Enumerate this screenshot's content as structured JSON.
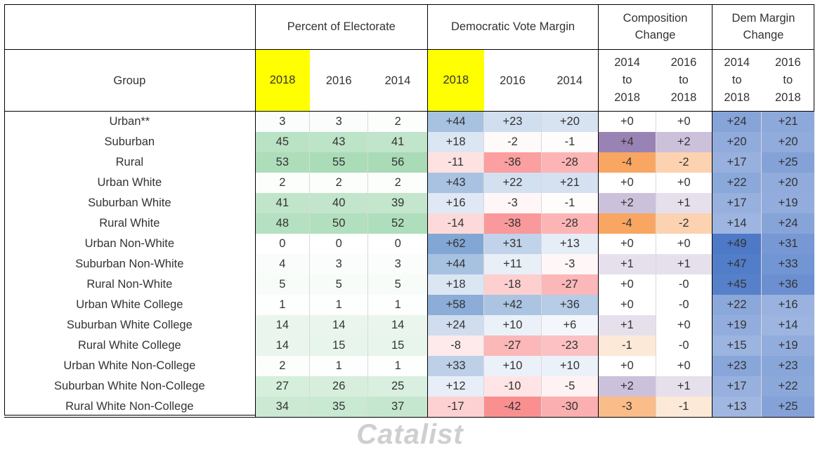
{
  "header": {
    "group_label": "Group",
    "percent_of_electorate": "Percent of Electorate",
    "dem_vote_margin": "Democratic Vote Margin",
    "composition_change": "Composition Change",
    "dem_margin_change": "Dem Margin Change",
    "years": [
      "2018",
      "2016",
      "2014"
    ],
    "change_2014": "2014 to 2018",
    "change_2016": "2016 to 2018"
  },
  "rows": [
    {
      "group": "Urban**",
      "pct": [
        "3",
        "3",
        "2"
      ],
      "margin": [
        "+44",
        "+23",
        "+20"
      ],
      "comp": [
        "+0",
        "+0"
      ],
      "mchange": [
        "+24",
        "+21"
      ]
    },
    {
      "group": "Suburban",
      "pct": [
        "45",
        "43",
        "41"
      ],
      "margin": [
        "+18",
        "-2",
        "-1"
      ],
      "comp": [
        "+4",
        "+2"
      ],
      "mchange": [
        "+20",
        "+20"
      ]
    },
    {
      "group": "Rural",
      "pct": [
        "53",
        "55",
        "56"
      ],
      "margin": [
        "-11",
        "-36",
        "-28"
      ],
      "comp": [
        "-4",
        "-2"
      ],
      "mchange": [
        "+17",
        "+25"
      ]
    },
    {
      "group": "Urban White",
      "pct": [
        "2",
        "2",
        "2"
      ],
      "margin": [
        "+43",
        "+22",
        "+21"
      ],
      "comp": [
        "+0",
        "+0"
      ],
      "mchange": [
        "+22",
        "+20"
      ]
    },
    {
      "group": "Suburban White",
      "pct": [
        "41",
        "40",
        "39"
      ],
      "margin": [
        "+16",
        "-3",
        "-1"
      ],
      "comp": [
        "+2",
        "+1"
      ],
      "mchange": [
        "+17",
        "+19"
      ]
    },
    {
      "group": "Rural White",
      "pct": [
        "48",
        "50",
        "52"
      ],
      "margin": [
        "-14",
        "-38",
        "-28"
      ],
      "comp": [
        "-4",
        "-2"
      ],
      "mchange": [
        "+14",
        "+24"
      ]
    },
    {
      "group": "Urban Non-White",
      "pct": [
        "0",
        "0",
        "0"
      ],
      "margin": [
        "+62",
        "+31",
        "+13"
      ],
      "comp": [
        "+0",
        "+0"
      ],
      "mchange": [
        "+49",
        "+31"
      ]
    },
    {
      "group": "Suburban Non-White",
      "pct": [
        "4",
        "3",
        "3"
      ],
      "margin": [
        "+44",
        "+11",
        "-3"
      ],
      "comp": [
        "+1",
        "+1"
      ],
      "mchange": [
        "+47",
        "+33"
      ]
    },
    {
      "group": "Rural Non-White",
      "pct": [
        "5",
        "5",
        "5"
      ],
      "margin": [
        "+18",
        "-18",
        "-27"
      ],
      "comp": [
        "+0",
        "-0"
      ],
      "mchange": [
        "+45",
        "+36"
      ]
    },
    {
      "group": "Urban White College",
      "pct": [
        "1",
        "1",
        "1"
      ],
      "margin": [
        "+58",
        "+42",
        "+36"
      ],
      "comp": [
        "+0",
        "-0"
      ],
      "mchange": [
        "+22",
        "+16"
      ]
    },
    {
      "group": "Suburban White College",
      "pct": [
        "14",
        "14",
        "14"
      ],
      "margin": [
        "+24",
        "+10",
        "+6"
      ],
      "comp": [
        "+1",
        "+0"
      ],
      "mchange": [
        "+19",
        "+14"
      ]
    },
    {
      "group": "Rural White College",
      "pct": [
        "14",
        "15",
        "15"
      ],
      "margin": [
        "-8",
        "-27",
        "-23"
      ],
      "comp": [
        "-1",
        "-0"
      ],
      "mchange": [
        "+15",
        "+19"
      ]
    },
    {
      "group": "Urban White Non-College",
      "pct": [
        "2",
        "1",
        "1"
      ],
      "margin": [
        "+33",
        "+10",
        "+10"
      ],
      "comp": [
        "+0",
        "+0"
      ],
      "mchange": [
        "+23",
        "+23"
      ]
    },
    {
      "group": "Suburban White Non-College",
      "pct": [
        "27",
        "26",
        "25"
      ],
      "margin": [
        "+12",
        "-10",
        "-5"
      ],
      "comp": [
        "+2",
        "+1"
      ],
      "mchange": [
        "+17",
        "+22"
      ]
    },
    {
      "group": "Rural White Non-College",
      "pct": [
        "34",
        "35",
        "37"
      ],
      "margin": [
        "-17",
        "-42",
        "-30"
      ],
      "comp": [
        "-3",
        "-1"
      ],
      "mchange": [
        "+13",
        "+25"
      ]
    }
  ],
  "colors": {
    "highlight": "#ffff00",
    "pct_green": "#63be7b",
    "margin_blue": "#5a8ac6",
    "margin_red": "#f8696b",
    "comp_purple": "#8064a2",
    "comp_orange": "#f79646",
    "change_blue": "#4472c4"
  },
  "footer": {
    "logo_text": "Catalist"
  }
}
